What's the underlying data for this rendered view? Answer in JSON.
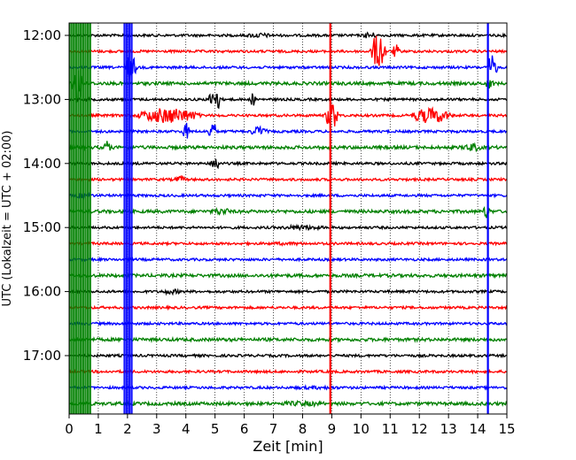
{
  "chart_data": {
    "type": "line",
    "subtype": "helicorder",
    "title": "",
    "xlabel": "Zeit  [min]",
    "ylabel": "UTC (Lokalzeit = UTC + 02:00)",
    "xlim": [
      0,
      15
    ],
    "x_ticks": [
      0,
      1,
      2,
      3,
      4,
      5,
      6,
      7,
      8,
      9,
      10,
      11,
      12,
      13,
      14,
      15
    ],
    "y_tick_labels": [
      "12:00",
      "13:00",
      "14:00",
      "15:00",
      "16:00",
      "17:00"
    ],
    "trace_start_hour": 12,
    "trace_interval_minutes": 15,
    "trace_count": 24,
    "trace_colors": [
      "#000000",
      "#ff0000",
      "#0000ff",
      "#008000"
    ],
    "grid": "vertical dotted at each minute",
    "events": [
      {
        "color": "#008000",
        "x": [
          0.0,
          0.75
        ],
        "note": "saturated vertical bands"
      },
      {
        "color": "#0000ff",
        "x": [
          1.9,
          2.15
        ],
        "note": "saturated vertical bands"
      },
      {
        "color": "#ff0000",
        "x": 8.95,
        "note": "spike"
      },
      {
        "color": "#0000ff",
        "x": 14.35,
        "note": "saturated vertical band"
      }
    ]
  }
}
